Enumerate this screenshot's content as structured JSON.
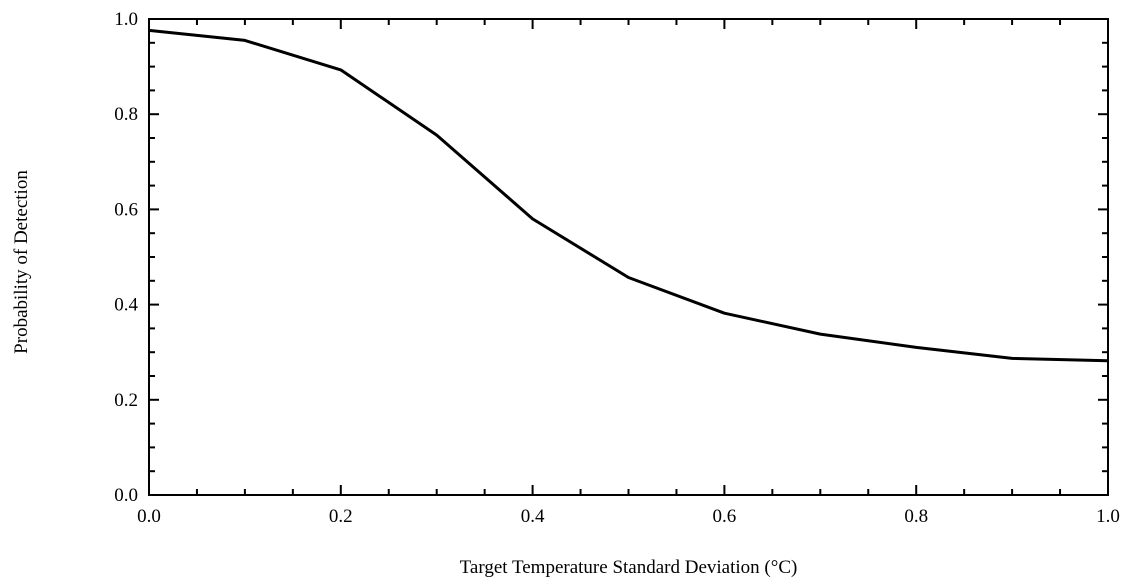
{
  "chart_data": {
    "type": "line",
    "title": "",
    "xlabel": "Target Temperature Standard Deviation (°C)",
    "ylabel": "Probability of Detection",
    "xlim": [
      0.0,
      1.0
    ],
    "ylim": [
      0.0,
      1.0
    ],
    "x_ticks": [
      "0.0",
      "0.2",
      "0.4",
      "0.6",
      "0.8",
      "1.0"
    ],
    "y_ticks": [
      "0.0",
      "0.2",
      "0.4",
      "0.6",
      "0.8",
      "1.0"
    ],
    "grid": false,
    "legend": "none",
    "series": [
      {
        "x": [
          0.0,
          0.1,
          0.2,
          0.3,
          0.4,
          0.5,
          0.6,
          0.7,
          0.8,
          0.9,
          1.0
        ],
        "values": [
          0.976,
          0.955,
          0.893,
          0.756,
          0.58,
          0.457,
          0.382,
          0.338,
          0.31,
          0.287,
          0.282
        ],
        "color": "#000000"
      }
    ]
  }
}
